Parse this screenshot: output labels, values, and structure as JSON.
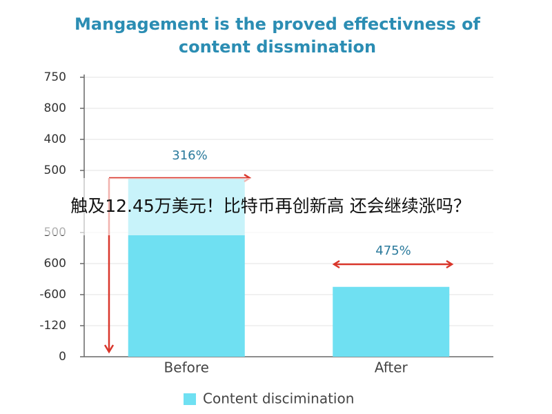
{
  "chart_data": {
    "type": "bar",
    "title": [
      "Mangagement is the proved effectivness of",
      "content dissmination"
    ],
    "categories": [
      "Before",
      "After"
    ],
    "series": [
      {
        "name": "Content discimination",
        "color": "#6fe0f2",
        "values": [
          5.75,
          2.25
        ]
      }
    ],
    "ylim": [
      0,
      9
    ],
    "yticks": [
      0,
      {
        "value": 1,
        "label": "-120"
      },
      {
        "value": 2,
        "label": "-600"
      },
      {
        "value": 3,
        "label": "600"
      },
      {
        "value": 4,
        "label": "500"
      },
      {
        "value": 6,
        "label": "500"
      },
      {
        "value": 7,
        "label": "400"
      },
      {
        "value": 8,
        "label": "800"
      },
      {
        "value": 9,
        "label": "750"
      }
    ],
    "grid": true,
    "annotations": [
      "316%",
      "475%"
    ],
    "legend": "bottom",
    "overlay_caption": "触及12.45万美元！比特币再创新高 还会继续涨吗？"
  }
}
